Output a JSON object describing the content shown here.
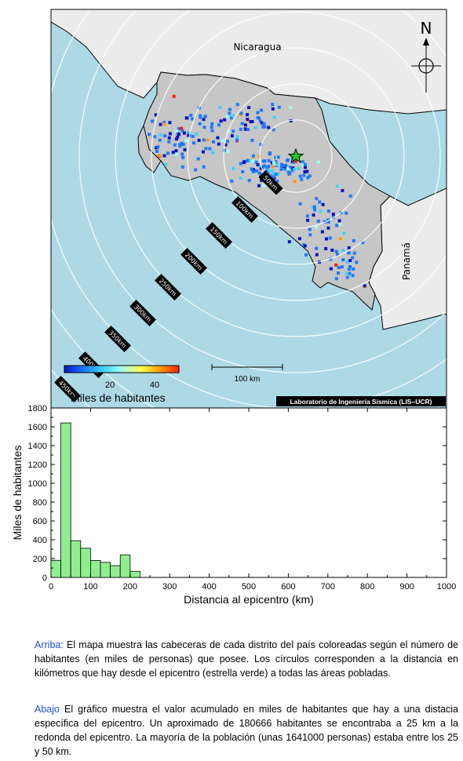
{
  "map": {
    "labels": {
      "country_north": "Nicaragua",
      "country_south": "Panamá"
    },
    "north_label": "N",
    "scale_bar_label": "100 km",
    "credit": "Laboratorio de Ingeniería Sísmica (LIS–UCR)",
    "ring_labels": [
      "50km",
      "100km",
      "150km",
      "200km",
      "250km",
      "300km",
      "350km",
      "400km",
      "450km"
    ],
    "colorbar": {
      "ticks": [
        "20",
        "40"
      ],
      "label": "Miles de habitantes",
      "colors": [
        "#0a14c8",
        "#1e78ff",
        "#3cd2ff",
        "#a0fff0",
        "#ffff50",
        "#ff9a00",
        "#ff2000"
      ]
    },
    "colors": {
      "ocean": "#acd9e5",
      "land_cr": "#c6c6c6",
      "land_other": "#ececec",
      "epicenter": "#23c823"
    }
  },
  "chart_data": {
    "type": "bar",
    "xlabel": "Distancia al epicentro (km)",
    "ylabel": "Miles de habitantes",
    "xlim": [
      0,
      1000
    ],
    "ylim": [
      0,
      1800
    ],
    "xticks": [
      0,
      100,
      200,
      300,
      400,
      500,
      600,
      700,
      800,
      900,
      1000
    ],
    "yticks": [
      0,
      200,
      400,
      600,
      800,
      1000,
      1200,
      1400,
      1600,
      1800
    ],
    "bin_width": 25,
    "bin_starts": [
      0,
      25,
      50,
      75,
      100,
      125,
      150,
      175,
      200
    ],
    "values": [
      181,
      1641,
      390,
      310,
      180,
      160,
      125,
      240,
      65
    ],
    "bar_color": "#90ee90"
  },
  "captions": {
    "top_key": "Arriba:",
    "top_text": " El mapa muestra las cabeceras de cada distrito del país coloreadas según el número de habitantes (en miles de personas) que posee.  Los círculos corresponden a la distancia en kilómetros que hay desde el epicentro (estrella verde) a todas las áreas pobladas.",
    "bottom_key": "Abajo",
    "bottom_text": " El gráfico muestra el valor acumulado en miles de habitantes que hay a una distacia específica del epicentro.  Un aproximado de 180666 habitantes se encontraba a 25 km a la redonda del epicentro.  La mayoría de la población (unas 1641000 personas) estaba entre los 25 y 50 km."
  }
}
